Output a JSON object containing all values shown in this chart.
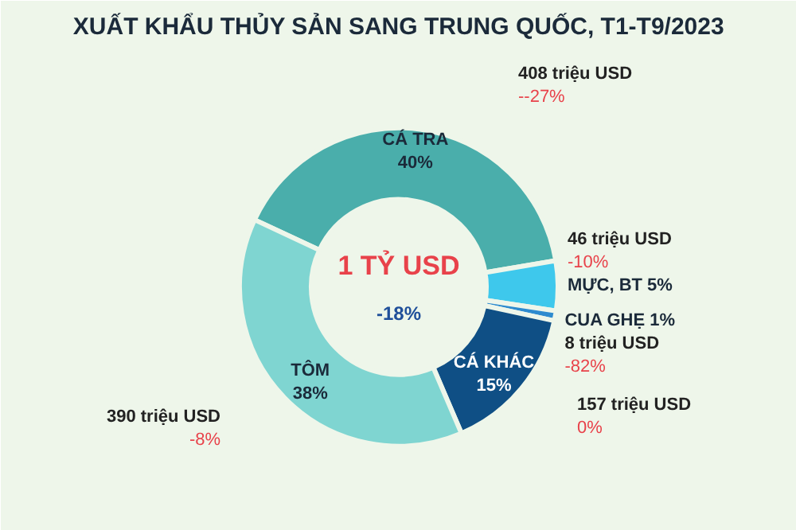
{
  "chart_data": {
    "type": "donut",
    "title": "XUẤT KHẨU THỦY SẢN SANG TRUNG QUỐC, T1-T9/2023",
    "categories": [
      "CÁ TRA",
      "MỰC, BT",
      "CUA GHẸ",
      "CÁ KHÁC",
      "TÔM"
    ],
    "values": [
      40,
      5,
      1,
      15,
      38
    ],
    "colors": [
      "#4aaeab",
      "#3ec8ec",
      "#2e8bcf",
      "#0f4f85",
      "#7fd5d1"
    ],
    "value_labels": [
      "40%",
      "5%",
      "1%",
      "15%",
      "38%"
    ],
    "annotations": [
      "1 TỶ USD",
      "-18%",
      "408 triệu USD",
      "--27%",
      "46 triệu USD",
      "-10%",
      "8 triệu USD",
      "-82%",
      "157 triệu USD",
      "0%",
      "390 triệu USD",
      "-8%"
    ]
  }
}
